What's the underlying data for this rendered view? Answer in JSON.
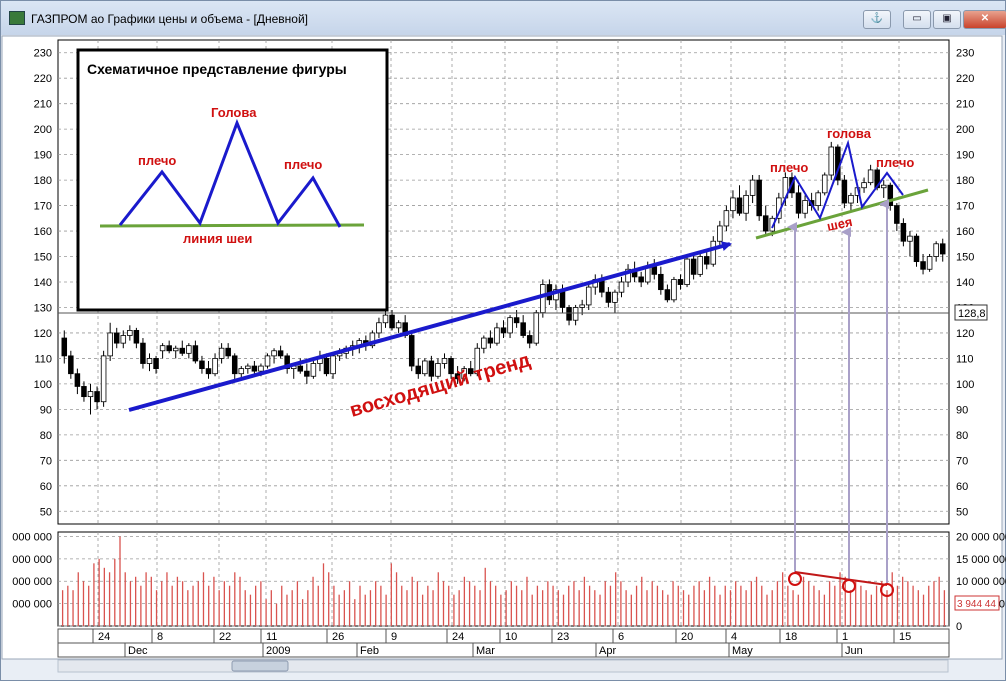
{
  "window": {
    "title": "ГАЗПРОМ ао Графики цены и объема - [Дневной]",
    "btn_anchor": "⚓",
    "btn_min": "▭",
    "btn_restore": "▣",
    "btn_close": "✕"
  },
  "colors": {
    "up": "#ffffff",
    "down": "#000000",
    "volume": "#d9534f",
    "trend": "#1a1acc",
    "neck": "#6aa33a",
    "labels": "#d01010",
    "arrows": "#a9a0c8"
  },
  "inset": {
    "title": "Схематичное представление фигуры",
    "head": "Голова",
    "left_shoulder": "плечо",
    "right_shoulder": "плечо",
    "neckline": "линия шеи"
  },
  "annotations": {
    "trend": "восходящий тренд",
    "head": "голова",
    "left_shoulder": "плечо",
    "right_shoulder": "плечо",
    "neck": "шея"
  },
  "chart_data": [
    {
      "type": "candlestick",
      "title": "ГАЗПРОМ ао",
      "ylim": [
        45,
        235
      ],
      "yticks": [
        50,
        60,
        70,
        80,
        90,
        100,
        110,
        120,
        130,
        140,
        150,
        160,
        170,
        180,
        190,
        200,
        210,
        220,
        230
      ],
      "last_price_label": "128,8",
      "reference_line": 128.8,
      "grid": true,
      "candles": [
        [
          118,
          121,
          108,
          111
        ],
        [
          111,
          113,
          102,
          104
        ],
        [
          104,
          106,
          96,
          99
        ],
        [
          99,
          101,
          93,
          95
        ],
        [
          95,
          100,
          88,
          97
        ],
        [
          97,
          99,
          90,
          93
        ],
        [
          93,
          113,
          91,
          111
        ],
        [
          111,
          124,
          109,
          120
        ],
        [
          120,
          122,
          114,
          116
        ],
        [
          116,
          121,
          114,
          119
        ],
        [
          119,
          123,
          117,
          121
        ],
        [
          121,
          122,
          114,
          116
        ],
        [
          116,
          118,
          106,
          108
        ],
        [
          108,
          112,
          105,
          110
        ],
        [
          110,
          111,
          104,
          106
        ],
        [
          113,
          116,
          110,
          115
        ],
        [
          115,
          117,
          112,
          113
        ],
        [
          113,
          115,
          110,
          114
        ],
        [
          114,
          117,
          111,
          112
        ],
        [
          112,
          116,
          110,
          115
        ],
        [
          115,
          117,
          108,
          109
        ],
        [
          109,
          111,
          104,
          106
        ],
        [
          106,
          109,
          102,
          104
        ],
        [
          104,
          112,
          103,
          110
        ],
        [
          110,
          116,
          108,
          114
        ],
        [
          114,
          116,
          110,
          111
        ],
        [
          111,
          112,
          101,
          104
        ],
        [
          104,
          107,
          102,
          106
        ],
        [
          106,
          108,
          104,
          107
        ],
        [
          107,
          109,
          104,
          105
        ],
        [
          105,
          108,
          103,
          107
        ],
        [
          107,
          112,
          106,
          111
        ],
        [
          111,
          114,
          108,
          113
        ],
        [
          113,
          115,
          110,
          111
        ],
        [
          111,
          112,
          104,
          106
        ],
        [
          106,
          108,
          102,
          107
        ],
        [
          107,
          110,
          104,
          105
        ],
        [
          105,
          108,
          100,
          103
        ],
        [
          103,
          109,
          102,
          108
        ],
        [
          108,
          113,
          105,
          110
        ],
        [
          110,
          112,
          103,
          104
        ],
        [
          104,
          112,
          102,
          111
        ],
        [
          111,
          114,
          109,
          112
        ],
        [
          112,
          115,
          110,
          114
        ],
        [
          114,
          117,
          111,
          115
        ],
        [
          115,
          118,
          112,
          117
        ],
        [
          117,
          119,
          113,
          115
        ],
        [
          115,
          121,
          114,
          120
        ],
        [
          120,
          126,
          118,
          124
        ],
        [
          124,
          130,
          122,
          127
        ],
        [
          127,
          129,
          121,
          122
        ],
        [
          122,
          125,
          120,
          124
        ],
        [
          124,
          127,
          118,
          119
        ],
        [
          119,
          121,
          105,
          107
        ],
        [
          107,
          110,
          102,
          104
        ],
        [
          104,
          110,
          103,
          109
        ],
        [
          109,
          111,
          101,
          103
        ],
        [
          103,
          110,
          102,
          108
        ],
        [
          108,
          112,
          106,
          110
        ],
        [
          110,
          111,
          102,
          104
        ],
        [
          104,
          107,
          100,
          102
        ],
        [
          102,
          107,
          101,
          106
        ],
        [
          106,
          109,
          103,
          104
        ],
        [
          104,
          116,
          103,
          114
        ],
        [
          114,
          119,
          112,
          118
        ],
        [
          118,
          121,
          114,
          116
        ],
        [
          116,
          124,
          115,
          122
        ],
        [
          122,
          125,
          118,
          120
        ],
        [
          120,
          127,
          118,
          126
        ],
        [
          126,
          129,
          122,
          124
        ],
        [
          124,
          127,
          118,
          119
        ],
        [
          119,
          121,
          114,
          116
        ],
        [
          116,
          129,
          115,
          128
        ],
        [
          128,
          141,
          126,
          139
        ],
        [
          139,
          141,
          131,
          133
        ],
        [
          133,
          139,
          129,
          137
        ],
        [
          137,
          139,
          128,
          130
        ],
        [
          130,
          131,
          123,
          125
        ],
        [
          125,
          131,
          123,
          130
        ],
        [
          130,
          133,
          127,
          131
        ],
        [
          131,
          139,
          129,
          138
        ],
        [
          138,
          143,
          135,
          141
        ],
        [
          141,
          143,
          134,
          136
        ],
        [
          136,
          138,
          130,
          132
        ],
        [
          132,
          137,
          128,
          136
        ],
        [
          136,
          142,
          134,
          140
        ],
        [
          140,
          147,
          138,
          145
        ],
        [
          145,
          148,
          140,
          142
        ],
        [
          142,
          144,
          138,
          140
        ],
        [
          140,
          148,
          139,
          146
        ],
        [
          146,
          149,
          141,
          143
        ],
        [
          143,
          146,
          135,
          137
        ],
        [
          137,
          139,
          132,
          133
        ],
        [
          133,
          142,
          132,
          141
        ],
        [
          141,
          143,
          137,
          139
        ],
        [
          139,
          151,
          138,
          149
        ],
        [
          149,
          151,
          141,
          143
        ],
        [
          143,
          151,
          142,
          150
        ],
        [
          150,
          153,
          145,
          147
        ],
        [
          147,
          158,
          146,
          156
        ],
        [
          156,
          164,
          154,
          162
        ],
        [
          162,
          170,
          160,
          168
        ],
        [
          168,
          176,
          165,
          173
        ],
        [
          173,
          178,
          166,
          167
        ],
        [
          167,
          176,
          164,
          174
        ],
        [
          174,
          182,
          171,
          180
        ],
        [
          180,
          182,
          164,
          166
        ],
        [
          166,
          170,
          158,
          160
        ],
        [
          160,
          166,
          158,
          165
        ],
        [
          165,
          175,
          163,
          173
        ],
        [
          173,
          183,
          170,
          181
        ],
        [
          181,
          183,
          173,
          175
        ],
        [
          175,
          178,
          165,
          167
        ],
        [
          167,
          174,
          165,
          172
        ],
        [
          172,
          175,
          168,
          170
        ],
        [
          170,
          176,
          168,
          175
        ],
        [
          175,
          183,
          174,
          182
        ],
        [
          182,
          195,
          180,
          193
        ],
        [
          193,
          194,
          178,
          180
        ],
        [
          180,
          182,
          169,
          171
        ],
        [
          171,
          175,
          168,
          174
        ],
        [
          174,
          178,
          171,
          177
        ],
        [
          177,
          181,
          175,
          179
        ],
        [
          179,
          186,
          178,
          184
        ],
        [
          184,
          185,
          176,
          177
        ],
        [
          177,
          180,
          173,
          178
        ],
        [
          178,
          179,
          168,
          170
        ],
        [
          170,
          171,
          160,
          163
        ],
        [
          163,
          165,
          154,
          156
        ],
        [
          156,
          160,
          150,
          158
        ],
        [
          158,
          159,
          146,
          148
        ],
        [
          148,
          151,
          143,
          145
        ],
        [
          145,
          151,
          144,
          150
        ],
        [
          150,
          156,
          148,
          155
        ],
        [
          155,
          157,
          148,
          151
        ]
      ]
    },
    {
      "type": "bar",
      "title": "Объем",
      "ylim": [
        0,
        21000000
      ],
      "yticks": [
        0,
        5000000,
        10000000,
        15000000,
        20000000
      ],
      "ytick_labels": [
        "0",
        "5 000 000",
        "10 000 000",
        "15 000 000",
        "20 000 000"
      ],
      "left_tick_labels": [
        "000 000",
        "000 000",
        "000 000",
        "000 000"
      ],
      "last_value_label": "3 944 44",
      "values": [
        8,
        9,
        8,
        12,
        10,
        9,
        14,
        15,
        13,
        12,
        15,
        20,
        12,
        10,
        11,
        9,
        12,
        11,
        8,
        10,
        12,
        9,
        11,
        10,
        8,
        9,
        10,
        12,
        9,
        11,
        8,
        10,
        9,
        12,
        11,
        8,
        7,
        9,
        10,
        6,
        8,
        5,
        9,
        7,
        8,
        10,
        6,
        8,
        11,
        9,
        14,
        12,
        9,
        7,
        8,
        10,
        6,
        9,
        7,
        8,
        10,
        9,
        7,
        14,
        12,
        9,
        8,
        11,
        10,
        7,
        9,
        8,
        12,
        10,
        9,
        7,
        8,
        11,
        10,
        9,
        8,
        13,
        10,
        9,
        7,
        8,
        10,
        9,
        8,
        11,
        7,
        9,
        8,
        10,
        9,
        8,
        7,
        9,
        10,
        8,
        11,
        9,
        8,
        7,
        10,
        9,
        12,
        10,
        8,
        7,
        9,
        11,
        8,
        10,
        9,
        8,
        7,
        10,
        9,
        8,
        7,
        9,
        10,
        8,
        11,
        9,
        7,
        9,
        8,
        10,
        9,
        8,
        10,
        11,
        9,
        7,
        8,
        10,
        12,
        9,
        8,
        7,
        11,
        10,
        9,
        8,
        7,
        10,
        9,
        12,
        11,
        8,
        10,
        9,
        8,
        7,
        9,
        10,
        8,
        12,
        9,
        11,
        10,
        9,
        8,
        7,
        9,
        10,
        11,
        8
      ]
    }
  ],
  "xaxis": {
    "days": [
      "24",
      "8",
      "22",
      "11",
      "26",
      "9",
      "24",
      "10",
      "23",
      "6",
      "20",
      "4",
      "18",
      "1",
      "15"
    ],
    "months": [
      "Dec",
      "2009",
      "Feb",
      "Mar",
      "Apr",
      "May",
      "Jun"
    ]
  }
}
